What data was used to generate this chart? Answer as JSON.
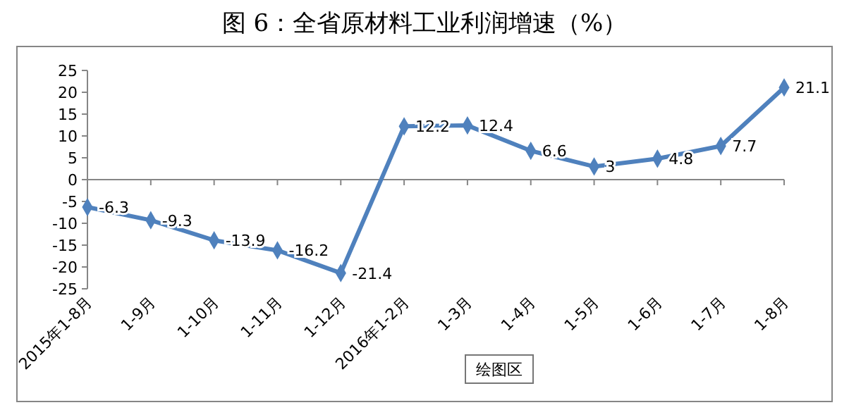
{
  "chart_data": {
    "type": "line",
    "title": "图 6：全省原材料工业利润增速（%）",
    "categories": [
      "2015年1-8月",
      "1-9月",
      "1-10月",
      "1-11月",
      "1-12月",
      "2016年1-2月",
      "1-3月",
      "1-4月",
      "1-5月",
      "1-6月",
      "1-7月",
      "1-8月"
    ],
    "series": [
      {
        "color": "#4f81bd",
        "values": [
          -6.3,
          -9.3,
          -13.9,
          -16.2,
          -21.4,
          12.2,
          12.4,
          6.6,
          3,
          4.8,
          7.7,
          21.1
        ]
      }
    ],
    "ylim": [
      -25,
      25
    ],
    "yticks": [
      -25,
      -20,
      -15,
      -10,
      -5,
      0,
      5,
      10,
      15,
      20,
      25
    ],
    "data_labels": true,
    "marker": "diamond",
    "line_style": "solid",
    "annotations": [
      "绘图区"
    ]
  }
}
